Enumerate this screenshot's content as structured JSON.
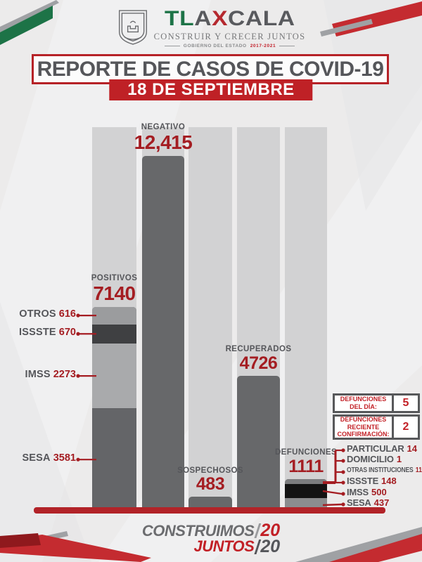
{
  "header": {
    "logo": {
      "wordmark": [
        {
          "text": "TL",
          "color": "#1d7347"
        },
        {
          "text": "A",
          "color": "#595a5e"
        },
        {
          "text": "X",
          "color": "#b5282e"
        },
        {
          "text": "CALA",
          "color": "#595a5e"
        }
      ],
      "tagline": "CONSTRUIR Y CRECER JUNTOS",
      "subline_prefix": "GOBIERNO DEL ESTADO",
      "subline_years": "2017-2021"
    },
    "title": "REPORTE DE CASOS DE COVID-19",
    "date": "18 DE SEPTIEMBRE"
  },
  "theme": {
    "red_accent": "#b62227",
    "number_red": "#a41d22",
    "text_gray": "#55565a",
    "track_gray": "#d2d2d3",
    "bar_gray": "#67686a",
    "logo_green": "#1d7347"
  },
  "chart_data": {
    "type": "bar",
    "title": "REPORTE DE CASOS DE COVID-19",
    "subtitle": "18 DE SEPTIEMBRE",
    "categories": [
      "POSITIVOS",
      "NEGATIVO",
      "SOSPECHOSOS",
      "RECUPERADOS",
      "DEFUNCIONES"
    ],
    "values": [
      7140,
      12415,
      483,
      4726,
      1111
    ],
    "ylim": [
      0,
      12415
    ],
    "grid": false,
    "legend": "none",
    "bars": [
      {
        "label": "POSITIVOS",
        "value": 7140,
        "display": "7140",
        "color": "#67686a",
        "segments": [
          {
            "label": "OTROS",
            "value": 616,
            "display": "616",
            "color": "#9b9c9e"
          },
          {
            "label": "ISSSTE",
            "value": 670,
            "display": "670",
            "color": "#3f4042"
          },
          {
            "label": "IMSS",
            "value": 2273,
            "display": "2273",
            "color": "#a9aaac"
          },
          {
            "label": "SESA",
            "value": 3581,
            "display": "3581",
            "color": "#646568"
          }
        ]
      },
      {
        "label": "NEGATIVO",
        "value": 12415,
        "display": "12,415",
        "color": "#67686a"
      },
      {
        "label": "SOSPECHOSOS",
        "value": 483,
        "display": "483",
        "color": "#67686a"
      },
      {
        "label": "RECUPERADOS",
        "value": 4726,
        "display": "4726",
        "color": "#67686a"
      },
      {
        "label": "DEFUNCIONES",
        "value": 1111,
        "display": "1111",
        "color": "#67686a",
        "segment_colors": [
          "#7c7d7f",
          "#131313",
          "#8b8c8e"
        ],
        "breakdown": [
          {
            "label": "PARTICULAR",
            "value": 14,
            "display": "14"
          },
          {
            "label": "DOMICILIO",
            "value": 1,
            "display": "1"
          },
          {
            "label": "OTRAS INSTITUCIONES",
            "value": 11,
            "display": "11"
          },
          {
            "label": "ISSSTE",
            "value": 148,
            "display": "148"
          },
          {
            "label": "IMSS",
            "value": 500,
            "display": "500"
          },
          {
            "label": "SESA",
            "value": 437,
            "display": "437"
          }
        ]
      }
    ]
  },
  "stats_boxes": [
    {
      "lines": [
        "DEFUNCIONES",
        "DEL DÍA:"
      ],
      "value": "5"
    },
    {
      "lines": [
        "DEFUNCIONES",
        "RECIENTE",
        "CONFIRMACIÓN:"
      ],
      "value": "2"
    }
  ],
  "footer": {
    "word1": "CONSTRUIMOS",
    "word2": "JUNTOS",
    "year_top": "20",
    "year_bottom": "20"
  }
}
